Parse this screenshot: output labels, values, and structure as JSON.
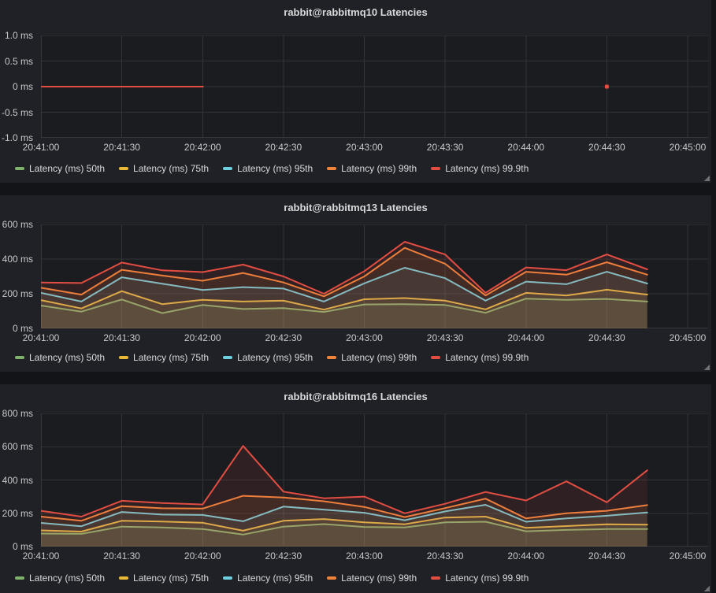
{
  "theme": {
    "page_bg": "#131418",
    "panel_bg": "#1f2126",
    "plot_bg": "#1b1c20",
    "grid_color": "rgba(255,255,255,0.10)",
    "plot_border_color": "rgba(255,255,255,0.14)",
    "title_color": "#d8d9da",
    "axis_text_color": "#c7c8ca",
    "legend_text_color": "#d8d9da",
    "series_fill_opacity": 0.1
  },
  "chart_data": [
    {
      "type": "line",
      "title": "rabbit@rabbitmq10 Latencies",
      "unit": "ms",
      "ylim": [
        -1,
        1
      ],
      "grid": true,
      "legend_position": "bottom-left",
      "y_ticks": [
        {
          "label": "1.0 ms",
          "value": 1
        },
        {
          "label": "0.5 ms",
          "value": 0.5
        },
        {
          "label": "0 ms",
          "value": 0
        },
        {
          "label": "-0.5 ms",
          "value": -0.5
        },
        {
          "label": "-1.0 ms",
          "value": -1
        }
      ],
      "x_ticks": [
        {
          "label": "20:41:00",
          "seconds": 0
        },
        {
          "label": "20:41:30",
          "seconds": 30
        },
        {
          "label": "20:42:00",
          "seconds": 60
        },
        {
          "label": "20:42:30",
          "seconds": 90
        },
        {
          "label": "20:43:00",
          "seconds": 120
        },
        {
          "label": "20:43:30",
          "seconds": 150
        },
        {
          "label": "20:44:00",
          "seconds": 180
        },
        {
          "label": "20:44:30",
          "seconds": 210
        },
        {
          "label": "20:45:00",
          "seconds": 240
        }
      ],
      "x_seconds": [
        0,
        15,
        30,
        45,
        60
      ],
      "series": [
        {
          "name": "Latency (ms) 50th",
          "color": "#7EB26D",
          "values": [
            0,
            0,
            0,
            0,
            0
          ]
        },
        {
          "name": "Latency (ms) 75th",
          "color": "#EAB839",
          "values": [
            0,
            0,
            0,
            0,
            0
          ]
        },
        {
          "name": "Latency (ms) 95th",
          "color": "#6ED0E0",
          "values": [
            0,
            0,
            0,
            0,
            0
          ]
        },
        {
          "name": "Latency (ms) 99th",
          "color": "#EF843C",
          "values": [
            0,
            0,
            0,
            0,
            0
          ]
        },
        {
          "name": "Latency (ms) 99.9th",
          "color": "#E24D42",
          "values": [
            0,
            0,
            0,
            0,
            0
          ]
        }
      ],
      "isolated_points": [
        {
          "series": "Latency (ms) 99.9th",
          "color": "#E24D42",
          "seconds": 210,
          "value": 0
        }
      ]
    },
    {
      "type": "line",
      "title": "rabbit@rabbitmq13 Latencies",
      "unit": "ms",
      "ylim": [
        0,
        600
      ],
      "grid": true,
      "legend_position": "bottom-left",
      "y_ticks": [
        {
          "label": "600 ms",
          "value": 600
        },
        {
          "label": "400 ms",
          "value": 400
        },
        {
          "label": "200 ms",
          "value": 200
        },
        {
          "label": "0 ms",
          "value": 0
        }
      ],
      "x_ticks": [
        {
          "label": "20:41:00",
          "seconds": 0
        },
        {
          "label": "20:41:30",
          "seconds": 30
        },
        {
          "label": "20:42:00",
          "seconds": 60
        },
        {
          "label": "20:42:30",
          "seconds": 90
        },
        {
          "label": "20:43:00",
          "seconds": 120
        },
        {
          "label": "20:43:30",
          "seconds": 150
        },
        {
          "label": "20:44:00",
          "seconds": 180
        },
        {
          "label": "20:44:30",
          "seconds": 210
        },
        {
          "label": "20:45:00",
          "seconds": 240
        }
      ],
      "x_seconds": [
        0,
        15,
        30,
        45,
        60,
        75,
        90,
        105,
        120,
        135,
        150,
        165,
        180,
        195,
        210,
        225
      ],
      "series": [
        {
          "name": "Latency (ms) 50th",
          "color": "#7EB26D",
          "values": [
            132,
            97,
            167,
            88,
            135,
            112,
            117,
            95,
            138,
            140,
            135,
            90,
            172,
            165,
            170,
            155
          ]
        },
        {
          "name": "Latency (ms) 75th",
          "color": "#EAB839",
          "values": [
            163,
            115,
            215,
            140,
            165,
            155,
            160,
            108,
            168,
            175,
            160,
            110,
            205,
            190,
            223,
            195
          ]
        },
        {
          "name": "Latency (ms) 95th",
          "color": "#6ED0E0",
          "values": [
            205,
            155,
            295,
            258,
            222,
            238,
            230,
            155,
            260,
            350,
            290,
            160,
            270,
            255,
            327,
            259
          ]
        },
        {
          "name": "Latency (ms) 99th",
          "color": "#EF843C",
          "values": [
            235,
            195,
            338,
            305,
            275,
            320,
            265,
            185,
            300,
            465,
            373,
            190,
            327,
            310,
            382,
            310
          ]
        },
        {
          "name": "Latency (ms) 99.9th",
          "color": "#E24D42",
          "values": [
            265,
            262,
            380,
            335,
            325,
            368,
            300,
            200,
            330,
            500,
            427,
            205,
            352,
            336,
            427,
            341
          ]
        }
      ],
      "isolated_points": []
    },
    {
      "type": "line",
      "title": "rabbit@rabbitmq16 Latencies",
      "unit": "ms",
      "ylim": [
        0,
        800
      ],
      "grid": true,
      "legend_position": "bottom-left",
      "y_ticks": [
        {
          "label": "800 ms",
          "value": 800
        },
        {
          "label": "600 ms",
          "value": 600
        },
        {
          "label": "400 ms",
          "value": 400
        },
        {
          "label": "200 ms",
          "value": 200
        },
        {
          "label": "0 ms",
          "value": 0
        }
      ],
      "x_ticks": [
        {
          "label": "20:41:00",
          "seconds": 0
        },
        {
          "label": "20:41:30",
          "seconds": 30
        },
        {
          "label": "20:42:00",
          "seconds": 60
        },
        {
          "label": "20:42:30",
          "seconds": 90
        },
        {
          "label": "20:43:00",
          "seconds": 120
        },
        {
          "label": "20:43:30",
          "seconds": 150
        },
        {
          "label": "20:44:00",
          "seconds": 180
        },
        {
          "label": "20:44:30",
          "seconds": 210
        },
        {
          "label": "20:45:00",
          "seconds": 240
        }
      ],
      "x_seconds": [
        0,
        15,
        30,
        45,
        60,
        75,
        90,
        105,
        120,
        135,
        150,
        165,
        180,
        195,
        210,
        225
      ],
      "series": [
        {
          "name": "Latency (ms) 50th",
          "color": "#7EB26D",
          "values": [
            78,
            76,
            120,
            115,
            105,
            72,
            120,
            135,
            118,
            115,
            146,
            149,
            92,
            100,
            105,
            105
          ]
        },
        {
          "name": "Latency (ms) 75th",
          "color": "#EAB839",
          "values": [
            97,
            90,
            155,
            150,
            143,
            95,
            155,
            165,
            146,
            134,
            174,
            180,
            112,
            123,
            134,
            131
          ]
        },
        {
          "name": "Latency (ms) 95th",
          "color": "#6ED0E0",
          "values": [
            142,
            122,
            208,
            192,
            190,
            152,
            240,
            222,
            203,
            158,
            211,
            251,
            149,
            169,
            185,
            205
          ]
        },
        {
          "name": "Latency (ms) 99th",
          "color": "#EF843C",
          "values": [
            180,
            155,
            243,
            230,
            228,
            305,
            295,
            272,
            238,
            177,
            231,
            288,
            169,
            200,
            215,
            249
          ]
        },
        {
          "name": "Latency (ms) 99.9th",
          "color": "#E24D42",
          "values": [
            215,
            180,
            275,
            262,
            253,
            605,
            330,
            290,
            300,
            200,
            257,
            328,
            277,
            392,
            266,
            458
          ]
        }
      ],
      "isolated_points": []
    }
  ]
}
